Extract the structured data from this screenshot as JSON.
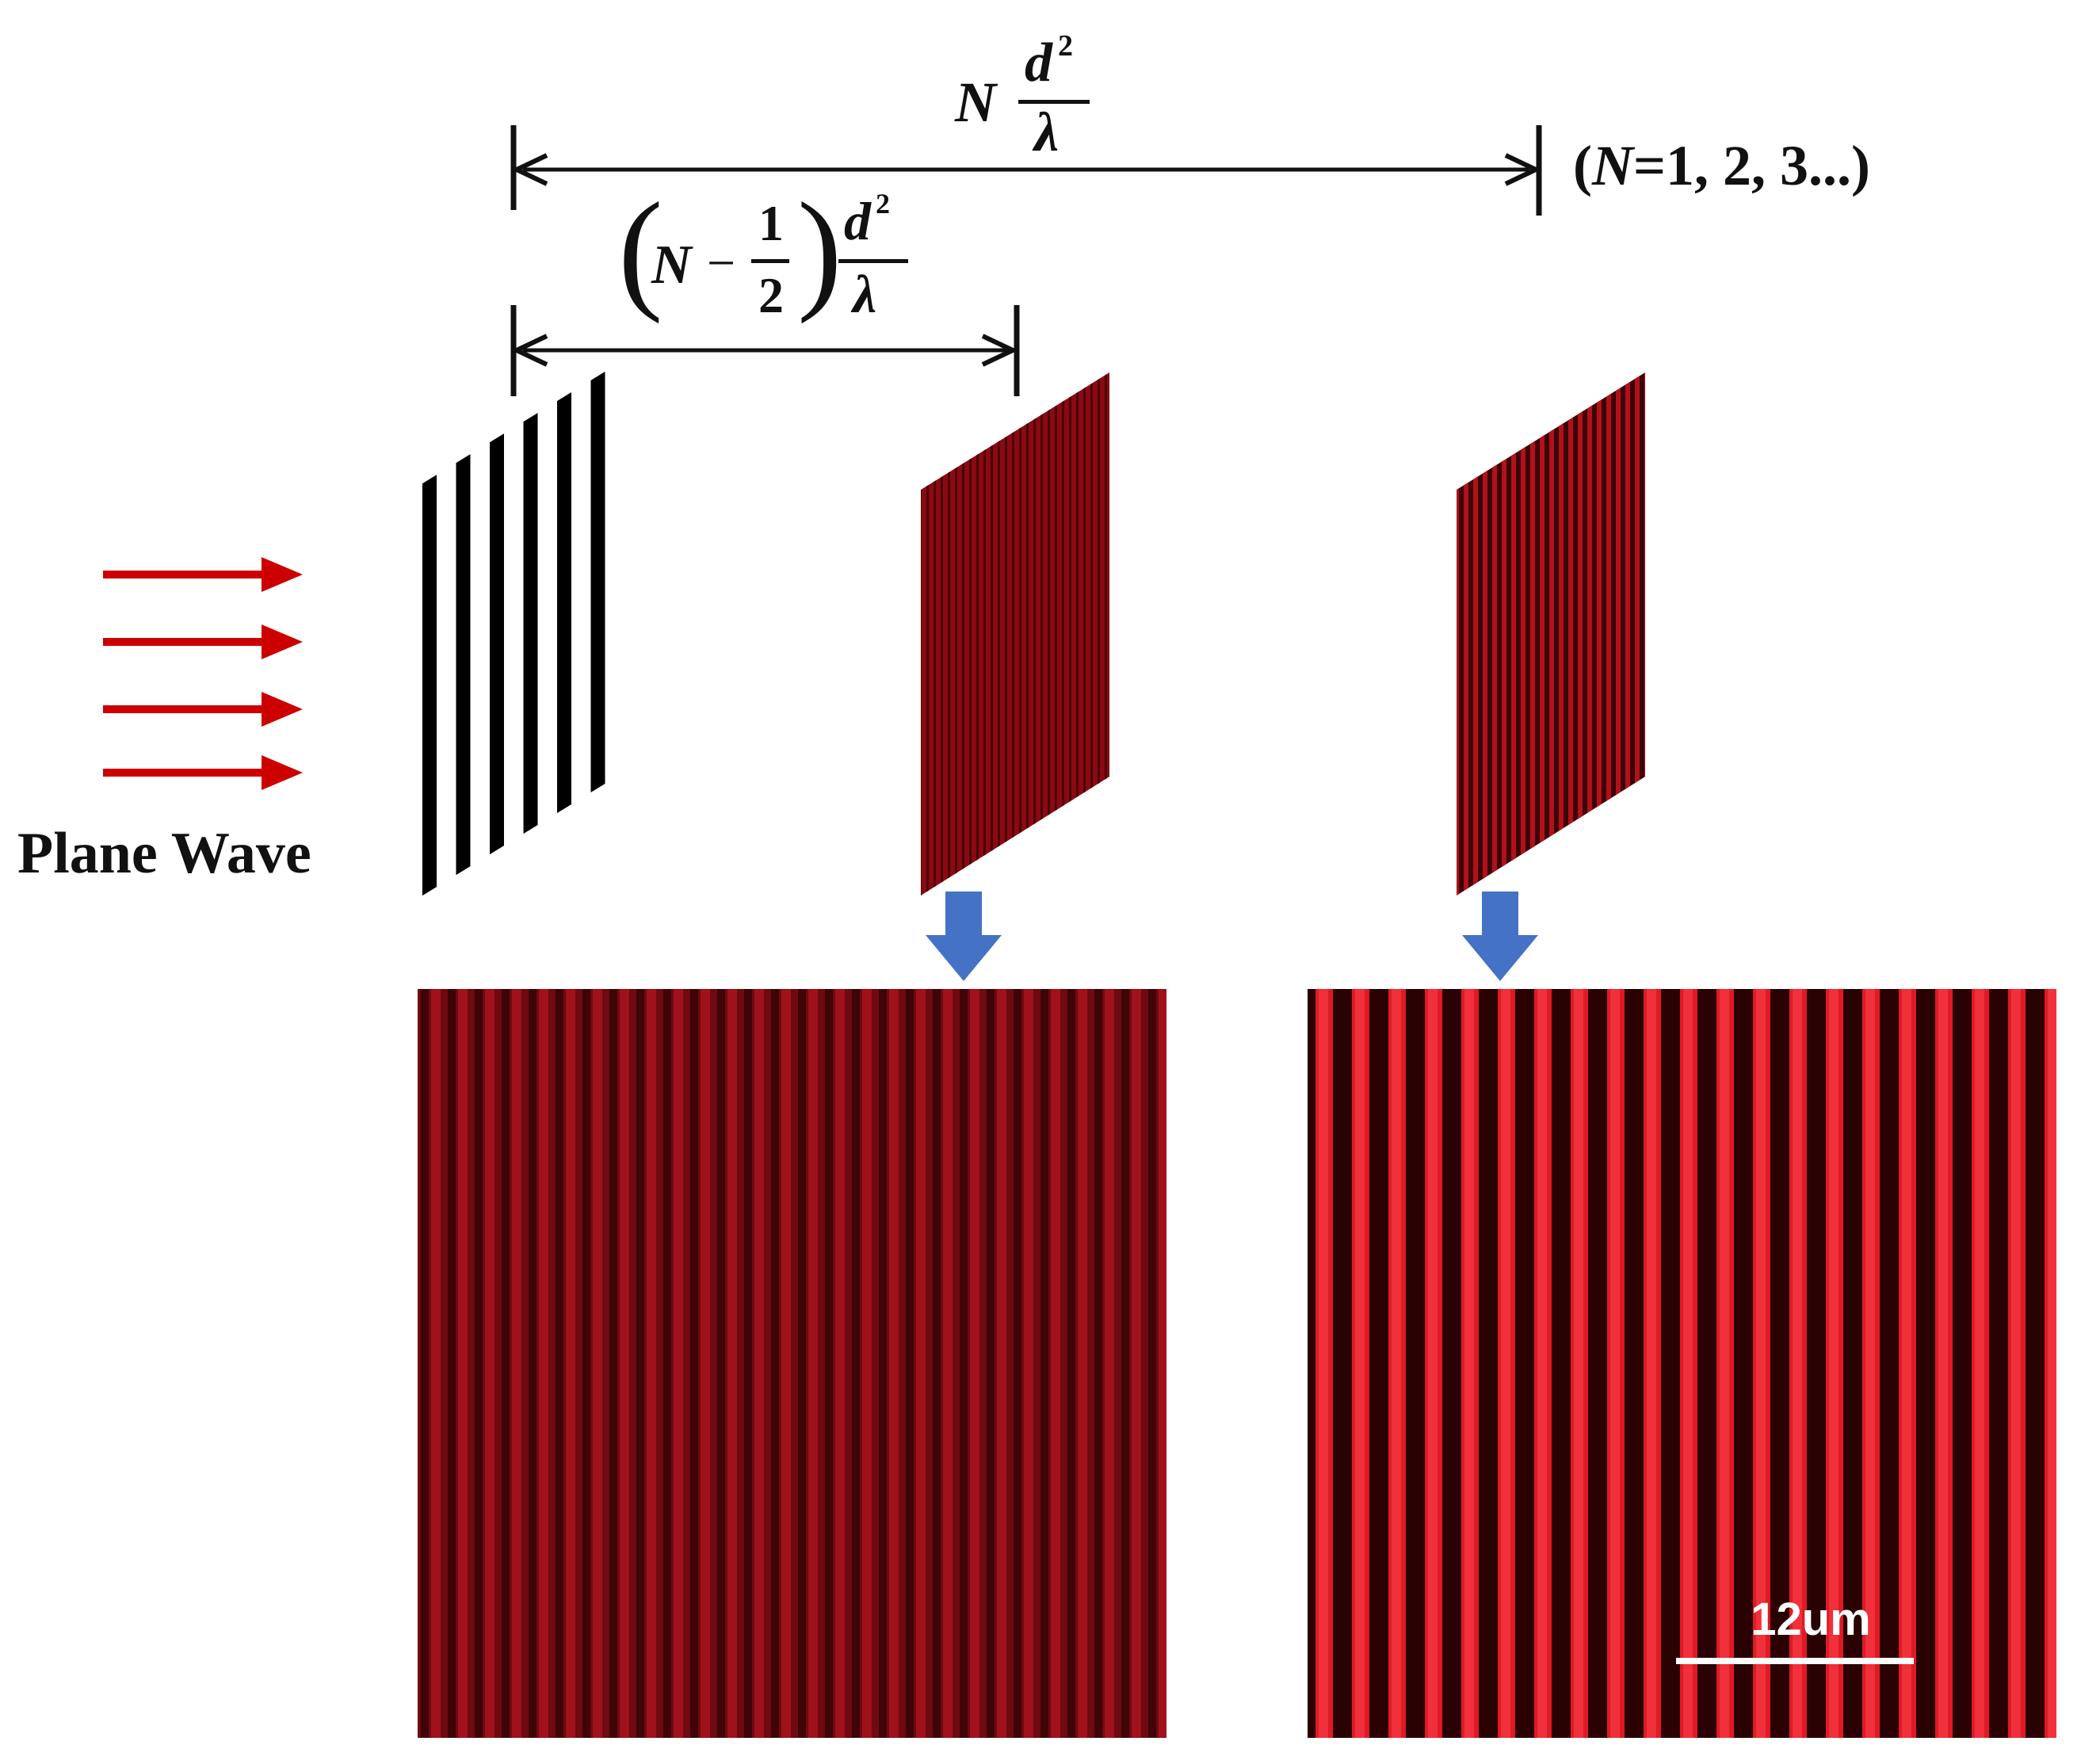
{
  "plane_wave_label": "Plane Wave",
  "distance_top": {
    "coefficient": "N",
    "numerator": "d",
    "exponent": "2",
    "denominator": "λ"
  },
  "distance_half": {
    "open": "(",
    "coefficient": "N",
    "minus": "−",
    "half_num": "1",
    "half_den": "2",
    "close": ")",
    "numerator": "d",
    "exponent": "2",
    "denominator": "λ"
  },
  "n_condition": {
    "open": "(",
    "var": "N",
    "rest": "=1, 2, 3...)"
  },
  "scale_bar": {
    "label": "12um"
  },
  "colors": {
    "arrow_red": "#cc0000",
    "down_arrow_blue": "#4472c4",
    "pattern_red": "#8b0a12",
    "pattern_dark": "#2a0204",
    "stripe_bright": "#e01a24"
  },
  "icons": [
    "plane-wave-arrow-icon",
    "down-arrow-icon",
    "dimension-arrow-icon"
  ]
}
